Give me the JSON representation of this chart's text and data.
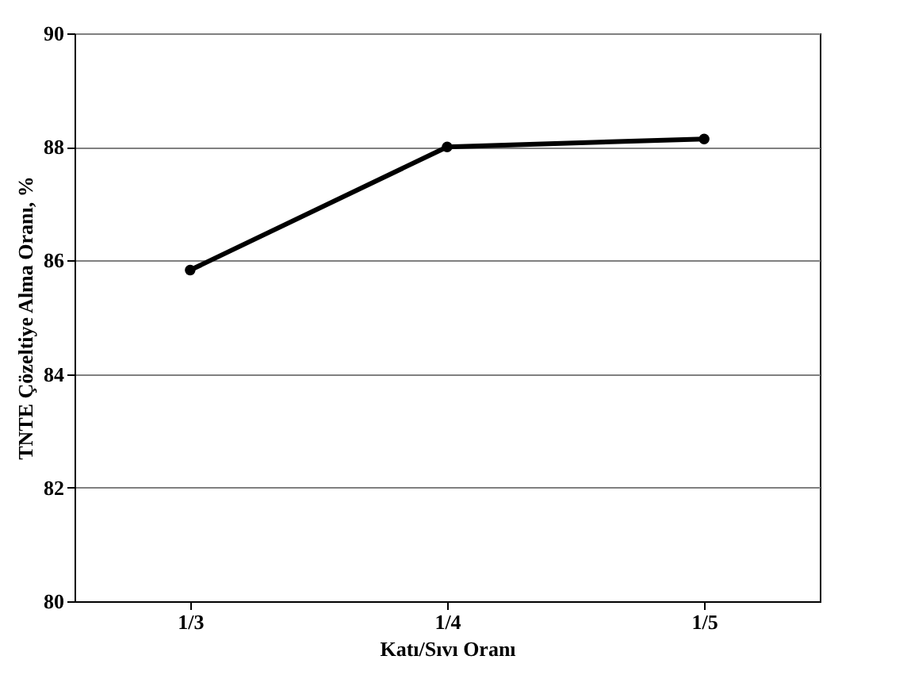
{
  "chart_data": {
    "type": "line",
    "xlabel": "Katı/Sıvı Oranı",
    "ylabel": "TNTE Çözeltiye Alma Oranı, %",
    "categories": [
      "1/3",
      "1/4",
      "1/5"
    ],
    "series": [
      {
        "color": "#000000",
        "values": [
          85.83,
          88.0,
          88.14
        ]
      }
    ],
    "ylim": [
      80,
      90
    ],
    "yticks": [
      80,
      82,
      84,
      86,
      88,
      90
    ],
    "grid": "y",
    "marker": "circle",
    "line_style": "solid",
    "legend": false
  }
}
